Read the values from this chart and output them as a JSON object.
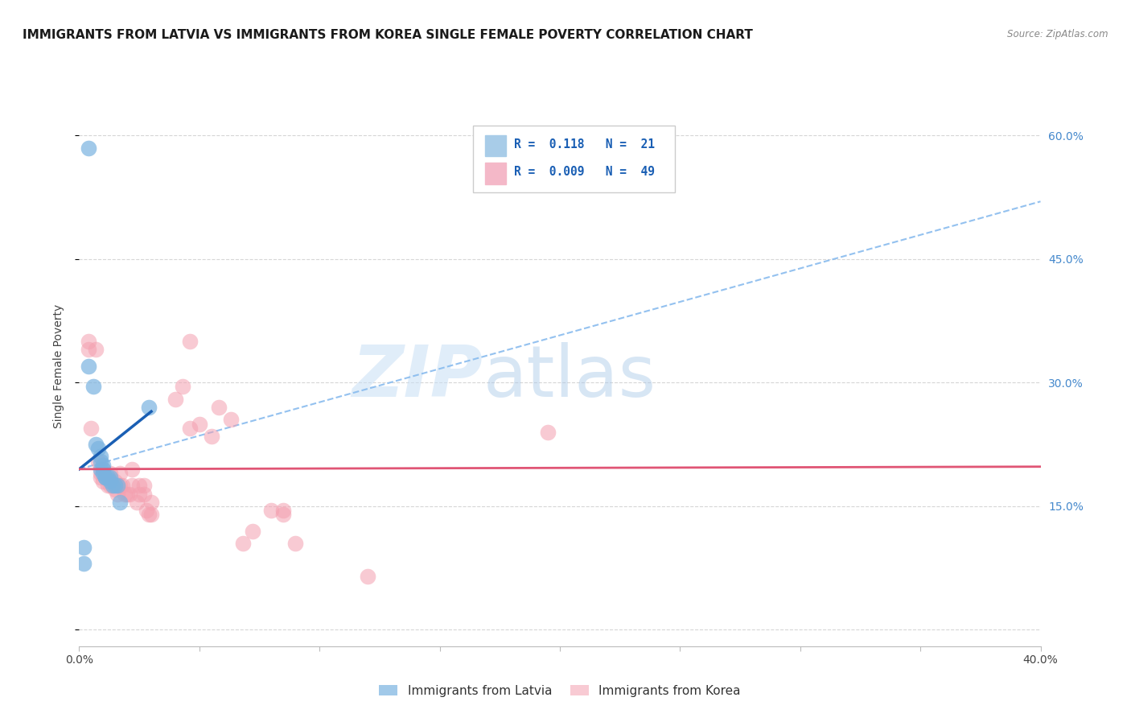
{
  "title": "IMMIGRANTS FROM LATVIA VS IMMIGRANTS FROM KOREA SINGLE FEMALE POVERTY CORRELATION CHART",
  "source": "Source: ZipAtlas.com",
  "ylabel": "Single Female Poverty",
  "x_min": 0.0,
  "x_max": 0.4,
  "y_min": -0.02,
  "y_max": 0.66,
  "y_ticks": [
    0.0,
    0.15,
    0.3,
    0.45,
    0.6
  ],
  "y_tick_labels_right": [
    "",
    "15.0%",
    "30.0%",
    "45.0%",
    "60.0%"
  ],
  "legend_label_1": "Immigrants from Latvia",
  "legend_label_2": "Immigrants from Korea",
  "watermark_zip": "ZIP",
  "watermark_atlas": "atlas",
  "latvia_color": "#7ab3e0",
  "korea_color": "#f4a0b0",
  "latvia_scatter": [
    [
      0.004,
      0.585
    ],
    [
      0.004,
      0.32
    ],
    [
      0.006,
      0.295
    ],
    [
      0.007,
      0.225
    ],
    [
      0.008,
      0.22
    ],
    [
      0.009,
      0.21
    ],
    [
      0.009,
      0.205
    ],
    [
      0.009,
      0.195
    ],
    [
      0.01,
      0.2
    ],
    [
      0.01,
      0.195
    ],
    [
      0.01,
      0.19
    ],
    [
      0.011,
      0.185
    ],
    [
      0.011,
      0.185
    ],
    [
      0.012,
      0.185
    ],
    [
      0.013,
      0.185
    ],
    [
      0.013,
      0.18
    ],
    [
      0.014,
      0.175
    ],
    [
      0.015,
      0.175
    ],
    [
      0.016,
      0.175
    ],
    [
      0.017,
      0.155
    ],
    [
      0.029,
      0.27
    ],
    [
      0.002,
      0.1
    ],
    [
      0.002,
      0.08
    ]
  ],
  "korea_scatter": [
    [
      0.004,
      0.34
    ],
    [
      0.004,
      0.35
    ],
    [
      0.005,
      0.245
    ],
    [
      0.007,
      0.34
    ],
    [
      0.008,
      0.205
    ],
    [
      0.009,
      0.19
    ],
    [
      0.009,
      0.185
    ],
    [
      0.01,
      0.195
    ],
    [
      0.01,
      0.18
    ],
    [
      0.011,
      0.185
    ],
    [
      0.012,
      0.175
    ],
    [
      0.013,
      0.19
    ],
    [
      0.013,
      0.175
    ],
    [
      0.014,
      0.175
    ],
    [
      0.015,
      0.18
    ],
    [
      0.015,
      0.17
    ],
    [
      0.016,
      0.175
    ],
    [
      0.016,
      0.165
    ],
    [
      0.017,
      0.19
    ],
    [
      0.017,
      0.175
    ],
    [
      0.018,
      0.175
    ],
    [
      0.019,
      0.165
    ],
    [
      0.02,
      0.165
    ],
    [
      0.021,
      0.165
    ],
    [
      0.022,
      0.175
    ],
    [
      0.022,
      0.195
    ],
    [
      0.024,
      0.155
    ],
    [
      0.025,
      0.165
    ],
    [
      0.025,
      0.175
    ],
    [
      0.027,
      0.175
    ],
    [
      0.027,
      0.165
    ],
    [
      0.028,
      0.145
    ],
    [
      0.029,
      0.14
    ],
    [
      0.03,
      0.14
    ],
    [
      0.03,
      0.155
    ],
    [
      0.04,
      0.28
    ],
    [
      0.043,
      0.295
    ],
    [
      0.046,
      0.35
    ],
    [
      0.046,
      0.245
    ],
    [
      0.05,
      0.25
    ],
    [
      0.055,
      0.235
    ],
    [
      0.058,
      0.27
    ],
    [
      0.063,
      0.255
    ],
    [
      0.068,
      0.105
    ],
    [
      0.072,
      0.12
    ],
    [
      0.08,
      0.145
    ],
    [
      0.085,
      0.145
    ],
    [
      0.085,
      0.14
    ],
    [
      0.09,
      0.105
    ],
    [
      0.195,
      0.24
    ],
    [
      0.12,
      0.065
    ]
  ],
  "latvia_line_solid": [
    [
      0.0,
      0.195
    ],
    [
      0.03,
      0.265
    ]
  ],
  "latvia_line_dashed": [
    [
      0.0,
      0.195
    ],
    [
      0.4,
      0.52
    ]
  ],
  "korea_line": [
    [
      0.0,
      0.195
    ],
    [
      0.4,
      0.198
    ]
  ],
  "background_color": "#ffffff",
  "grid_color": "#cccccc",
  "title_fontsize": 11,
  "axis_label_fontsize": 10,
  "tick_fontsize": 10,
  "dot_size": 200
}
